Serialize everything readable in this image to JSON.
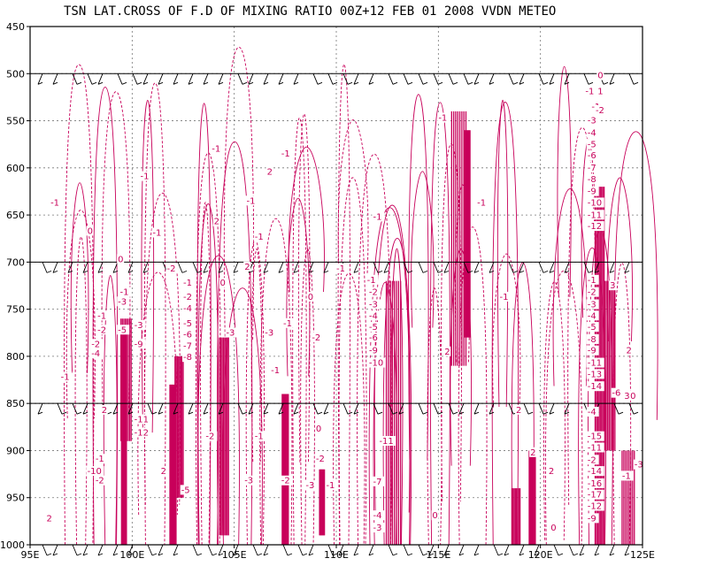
{
  "chart_data": {
    "type": "contour",
    "title": "TSN LAT.CROSS OF F.D OF MIXING RATIO 00Z+12 FEB 01 2008 VVDN METEO",
    "x_ticks": [
      "95E",
      "100E",
      "105E",
      "110E",
      "115E",
      "120E",
      "125E"
    ],
    "x_values": [
      95,
      100,
      105,
      110,
      115,
      120,
      125
    ],
    "y_ticks": [
      "450",
      "500",
      "550",
      "600",
      "650",
      "700",
      "750",
      "800",
      "850",
      "900",
      "950",
      "1000"
    ],
    "y_values": [
      450,
      500,
      550,
      600,
      650,
      700,
      750,
      800,
      850,
      900,
      950,
      1000
    ],
    "xlim": [
      95,
      125
    ],
    "ylim": [
      1000,
      450
    ],
    "grid": true,
    "contour_color": "#c8005a",
    "wind_barb_levels": [
      500,
      700,
      850,
      1000
    ],
    "contour_labels": [
      {
        "text": "-1",
        "x": 96.0,
        "y": 640
      },
      {
        "text": "0",
        "x": 97.8,
        "y": 670
      },
      {
        "text": "-1",
        "x": 100.4,
        "y": 612
      },
      {
        "text": "-1",
        "x": 103.9,
        "y": 583
      },
      {
        "text": "2",
        "x": 106.6,
        "y": 607
      },
      {
        "text": "2",
        "x": 104.0,
        "y": 660
      },
      {
        "text": "-1",
        "x": 105.6,
        "y": 638
      },
      {
        "text": "-1",
        "x": 106.0,
        "y": 676
      },
      {
        "text": "-1",
        "x": 101.0,
        "y": 672
      },
      {
        "text": "-1",
        "x": 107.3,
        "y": 588
      },
      {
        "text": "-1",
        "x": 111.8,
        "y": 655
      },
      {
        "text": "-1",
        "x": 110.0,
        "y": 710
      },
      {
        "text": "-1",
        "x": 115.0,
        "y": 550
      },
      {
        "text": "-1",
        "x": 118.0,
        "y": 740
      },
      {
        "text": "2",
        "x": 115.3,
        "y": 798
      },
      {
        "text": "-1",
        "x": 116.9,
        "y": 640
      },
      {
        "text": "0",
        "x": 99.3,
        "y": 700
      },
      {
        "text": "0",
        "x": 104.3,
        "y": 725
      },
      {
        "text": "0",
        "x": 108.6,
        "y": 740
      },
      {
        "text": "-2",
        "x": 101.7,
        "y": 710
      },
      {
        "text": "2",
        "x": 105.5,
        "y": 708
      },
      {
        "text": "-1",
        "x": 96.5,
        "y": 825
      },
      {
        "text": "-1",
        "x": 98.3,
        "y": 760
      },
      {
        "text": "-2",
        "x": 98.3,
        "y": 775
      },
      {
        "text": "-2",
        "x": 98.0,
        "y": 790
      },
      {
        "text": "-4",
        "x": 98.0,
        "y": 800
      },
      {
        "text": "-1",
        "x": 99.4,
        "y": 735
      },
      {
        "text": "-3",
        "x": 99.3,
        "y": 745
      },
      {
        "text": "-5",
        "x": 99.3,
        "y": 775
      },
      {
        "text": "-3",
        "x": 100.1,
        "y": 770
      },
      {
        "text": "-9",
        "x": 100.1,
        "y": 790
      },
      {
        "text": "-11",
        "x": 100.1,
        "y": 870
      },
      {
        "text": "-12",
        "x": 100.1,
        "y": 884
      },
      {
        "text": "2",
        "x": 98.5,
        "y": 860
      },
      {
        "text": "2",
        "x": 95.8,
        "y": 975
      },
      {
        "text": "-1",
        "x": 98.2,
        "y": 912
      },
      {
        "text": "-10",
        "x": 97.8,
        "y": 925
      },
      {
        "text": "-2",
        "x": 98.2,
        "y": 935
      },
      {
        "text": "-1",
        "x": 102.5,
        "y": 725
      },
      {
        "text": "-2",
        "x": 102.5,
        "y": 740
      },
      {
        "text": "-4",
        "x": 102.5,
        "y": 752
      },
      {
        "text": "-5",
        "x": 102.5,
        "y": 768
      },
      {
        "text": "-6",
        "x": 102.5,
        "y": 780
      },
      {
        "text": "-7",
        "x": 102.5,
        "y": 792
      },
      {
        "text": "-8",
        "x": 102.5,
        "y": 804
      },
      {
        "text": "-3",
        "x": 104.6,
        "y": 778
      },
      {
        "text": "-3",
        "x": 106.5,
        "y": 778
      },
      {
        "text": "-1",
        "x": 107.4,
        "y": 768
      },
      {
        "text": "-2",
        "x": 108.8,
        "y": 783
      },
      {
        "text": "-1",
        "x": 106.8,
        "y": 818
      },
      {
        "text": "-1",
        "x": 106.0,
        "y": 888
      },
      {
        "text": "2",
        "x": 101.4,
        "y": 925
      },
      {
        "text": "-2",
        "x": 103.6,
        "y": 888
      },
      {
        "text": "-3",
        "x": 105.5,
        "y": 935
      },
      {
        "text": "-5",
        "x": 102.4,
        "y": 945
      },
      {
        "text": "-2",
        "x": 107.3,
        "y": 935
      },
      {
        "text": "-3",
        "x": 108.5,
        "y": 940
      },
      {
        "text": "-2",
        "x": 109.0,
        "y": 912
      },
      {
        "text": "0",
        "x": 109.0,
        "y": 880
      },
      {
        "text": "-1",
        "x": 109.5,
        "y": 940
      },
      {
        "text": "-1",
        "x": 111.5,
        "y": 722
      },
      {
        "text": "-2",
        "x": 111.6,
        "y": 735
      },
      {
        "text": "-3",
        "x": 111.6,
        "y": 748
      },
      {
        "text": "-4",
        "x": 111.6,
        "y": 760
      },
      {
        "text": "-5",
        "x": 111.6,
        "y": 772
      },
      {
        "text": "-6",
        "x": 111.6,
        "y": 783
      },
      {
        "text": "-9",
        "x": 111.6,
        "y": 797
      },
      {
        "text": "-10",
        "x": 111.6,
        "y": 810
      },
      {
        "text": "-11",
        "x": 112.1,
        "y": 893
      },
      {
        "text": "-7",
        "x": 111.8,
        "y": 936
      },
      {
        "text": "-4",
        "x": 111.8,
        "y": 972
      },
      {
        "text": "-3",
        "x": 111.8,
        "y": 985
      },
      {
        "text": "0",
        "x": 114.7,
        "y": 972
      },
      {
        "text": "2",
        "x": 119.5,
        "y": 905
      },
      {
        "text": "2",
        "x": 120.4,
        "y": 925
      },
      {
        "text": "0",
        "x": 120.5,
        "y": 985
      },
      {
        "text": "0",
        "x": 122.8,
        "y": 505
      },
      {
        "text": "-1",
        "x": 122.2,
        "y": 522
      },
      {
        "text": "1",
        "x": 122.8,
        "y": 522
      },
      {
        "text": "-1",
        "x": 122.5,
        "y": 538
      },
      {
        "text": "-2",
        "x": 122.7,
        "y": 542
      },
      {
        "text": "-3",
        "x": 122.3,
        "y": 553
      },
      {
        "text": "-4",
        "x": 122.3,
        "y": 566
      },
      {
        "text": "-5",
        "x": 122.3,
        "y": 578
      },
      {
        "text": "-6",
        "x": 122.3,
        "y": 590
      },
      {
        "text": "-7",
        "x": 122.3,
        "y": 603
      },
      {
        "text": "-8",
        "x": 122.3,
        "y": 615
      },
      {
        "text": "-9",
        "x": 122.3,
        "y": 628
      },
      {
        "text": "-10",
        "x": 122.3,
        "y": 640
      },
      {
        "text": "-11",
        "x": 122.3,
        "y": 653
      },
      {
        "text": "-12",
        "x": 122.3,
        "y": 665
      },
      {
        "text": "-1",
        "x": 122.3,
        "y": 722
      },
      {
        "text": "-2",
        "x": 122.3,
        "y": 735
      },
      {
        "text": "-3",
        "x": 122.3,
        "y": 748
      },
      {
        "text": "-4",
        "x": 122.3,
        "y": 760
      },
      {
        "text": "-5",
        "x": 122.3,
        "y": 772
      },
      {
        "text": "-8",
        "x": 122.3,
        "y": 785
      },
      {
        "text": "-9",
        "x": 122.3,
        "y": 797
      },
      {
        "text": "-11",
        "x": 122.3,
        "y": 810
      },
      {
        "text": "-13",
        "x": 122.3,
        "y": 822
      },
      {
        "text": "-14",
        "x": 122.3,
        "y": 835
      },
      {
        "text": "-15",
        "x": 122.3,
        "y": 888
      },
      {
        "text": "-11",
        "x": 122.3,
        "y": 900
      },
      {
        "text": "-2",
        "x": 122.3,
        "y": 913
      },
      {
        "text": "-14",
        "x": 122.3,
        "y": 925
      },
      {
        "text": "-16",
        "x": 122.3,
        "y": 938
      },
      {
        "text": "-17",
        "x": 122.3,
        "y": 950
      },
      {
        "text": "-12",
        "x": 122.3,
        "y": 962
      },
      {
        "text": "-9",
        "x": 122.3,
        "y": 975
      },
      {
        "text": "3",
        "x": 123.4,
        "y": 728
      },
      {
        "text": "2",
        "x": 124.2,
        "y": 797
      },
      {
        "text": "-6",
        "x": 123.5,
        "y": 842
      },
      {
        "text": "3",
        "x": 124.1,
        "y": 845
      },
      {
        "text": "0",
        "x": 124.4,
        "y": 845
      },
      {
        "text": "-4",
        "x": 122.3,
        "y": 862
      },
      {
        "text": "-3",
        "x": 124.6,
        "y": 918
      },
      {
        "text": "-1",
        "x": 124.0,
        "y": 930
      },
      {
        "text": "2",
        "x": 118.8,
        "y": 860
      }
    ]
  }
}
